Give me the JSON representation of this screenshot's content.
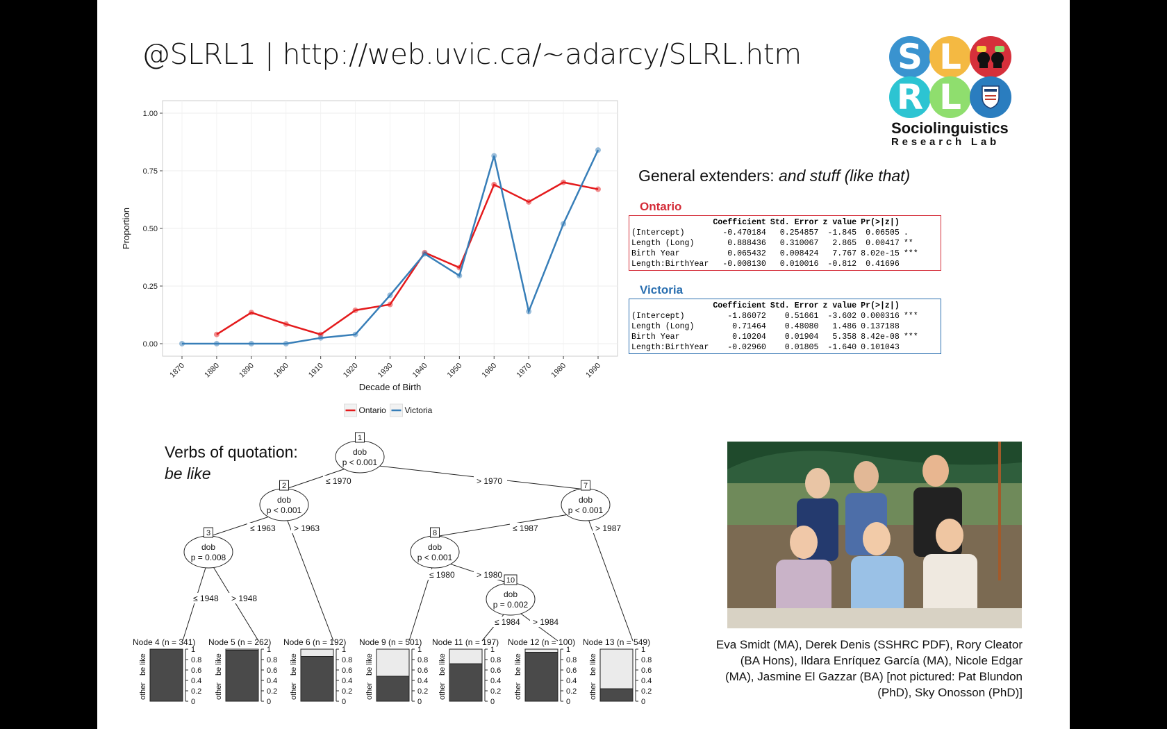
{
  "header": {
    "title": "@SLRL1 | http://web.uvic.ca/~adarcy/SLRL.htm"
  },
  "logo": {
    "letters": [
      "S",
      "L",
      "",
      "R",
      "L",
      ""
    ],
    "name": "Sociolinguistics",
    "subname": "Research Lab",
    "colors": [
      "#3a93cf",
      "#f4b942",
      "#d6303b",
      "#2cc4d2",
      "#8fde6e",
      "#2a7dbf"
    ]
  },
  "chart_data": {
    "type": "line",
    "xlabel": "Decade of Birth",
    "ylabel": "Proportion",
    "ylim": [
      0,
      1
    ],
    "x": [
      1870,
      1880,
      1890,
      1900,
      1910,
      1920,
      1930,
      1940,
      1950,
      1960,
      1970,
      1980,
      1990
    ],
    "yticks": [
      "0.00",
      "0.25",
      "0.50",
      "0.75",
      "1.00"
    ],
    "legend_position": "bottom",
    "grid": true,
    "series": [
      {
        "name": "Ontario",
        "color": "#e41a1c",
        "x": [
          1880,
          1890,
          1900,
          1910,
          1920,
          1930,
          1940,
          1950,
          1960,
          1970,
          1980,
          1990
        ],
        "values": [
          0.04,
          0.135,
          0.085,
          0.04,
          0.145,
          0.17,
          0.395,
          0.33,
          0.69,
          0.615,
          0.7,
          0.67
        ]
      },
      {
        "name": "Victoria",
        "color": "#377eb8",
        "x": [
          1870,
          1880,
          1890,
          1900,
          1910,
          1920,
          1930,
          1940,
          1950,
          1960,
          1970,
          1980,
          1990
        ],
        "values": [
          0.0,
          0.0,
          0.0,
          0.0,
          0.025,
          0.04,
          0.21,
          0.39,
          0.295,
          0.815,
          0.14,
          0.52,
          0.84
        ]
      }
    ]
  },
  "general_extenders": {
    "heading_plain": "General extenders: ",
    "heading_italic": "and stuff (like that)",
    "ontario": {
      "label": "Ontario",
      "color": "#d42c38",
      "header": [
        "",
        "Coefficient",
        "Std. Error",
        "z value",
        "Pr(>|z|)",
        ""
      ],
      "rows": [
        [
          "(Intercept)",
          "-0.470184",
          "0.254857",
          "-1.845",
          "0.06505",
          "."
        ],
        [
          "Length (Long)",
          "0.888436",
          "0.310067",
          "2.865",
          "0.00417",
          "**"
        ],
        [
          "Birth Year",
          "0.065432",
          "0.008424",
          "7.767",
          "8.02e-15",
          "***"
        ],
        [
          "Length:BirthYear",
          "-0.008130",
          "0.010016",
          "-0.812",
          "0.41696",
          ""
        ]
      ]
    },
    "victoria": {
      "label": "Victoria",
      "color": "#2a6fb0",
      "header": [
        "",
        "Coefficient",
        "Std. Error",
        "z value",
        "Pr(>|z|)",
        ""
      ],
      "rows": [
        [
          "(Intercept)",
          "-1.86072",
          "0.51661",
          "-3.602",
          "0.000316",
          "***"
        ],
        [
          "Length (Long)",
          "0.71464",
          "0.48080",
          "1.486",
          "0.137188",
          ""
        ],
        [
          "Birth Year",
          "0.10204",
          "0.01904",
          "5.358",
          "8.42e-08",
          "***"
        ],
        [
          "Length:BirthYear",
          "-0.02960",
          "0.01805",
          "-1.640",
          "0.101043",
          ""
        ]
      ]
    }
  },
  "quotation": {
    "heading_line1": "Verbs of quotation:",
    "heading_line2": "be like",
    "tree": {
      "inner_nodes": [
        {
          "id": "1",
          "var": "dob",
          "p": "p < 0.001"
        },
        {
          "id": "2",
          "var": "dob",
          "p": "p < 0.001"
        },
        {
          "id": "3",
          "var": "dob",
          "p": "p = 0.008"
        },
        {
          "id": "7",
          "var": "dob",
          "p": "p < 0.001"
        },
        {
          "id": "8",
          "var": "dob",
          "p": "p < 0.001"
        },
        {
          "id": "10",
          "var": "dob",
          "p": "p = 0.002"
        }
      ],
      "edge_labels": [
        "≤ 1970",
        "> 1970",
        "≤ 1963",
        "> 1963",
        "≤ 1948",
        "> 1948",
        "≤ 1987",
        "> 1987",
        "≤ 1980",
        "> 1980",
        "≤ 1984",
        "> 1984"
      ],
      "leaves": [
        {
          "label": "Node 4 (n = 341)",
          "be_like": 1.0
        },
        {
          "label": "Node 5 (n = 262)",
          "be_like": 0.98
        },
        {
          "label": "Node 6 (n = 192)",
          "be_like": 0.86
        },
        {
          "label": "Node 9 (n = 501)",
          "be_like": 0.48
        },
        {
          "label": "Node 11 (n = 197)",
          "be_like": 0.72
        },
        {
          "label": "Node 12 (n = 100)",
          "be_like": 0.94
        },
        {
          "label": "Node 13 (n = 549)",
          "be_like": 0.24
        }
      ],
      "axis_ticks": [
        "0",
        "0.2",
        "0.4",
        "0.6",
        "0.8",
        "1"
      ],
      "axis_labels": [
        "other",
        "be like"
      ]
    }
  },
  "photo": {
    "caption": "Eva Smidt (MA), Derek Denis (SSHRC PDF), Rory Cleator (BA Hons), Ildara Enríquez García (MA), Nicole Edgar (MA), Jasmine El Gazzar (BA) [not pictured: Pat Blundon (PhD), Sky Onosson (PhD)]"
  }
}
